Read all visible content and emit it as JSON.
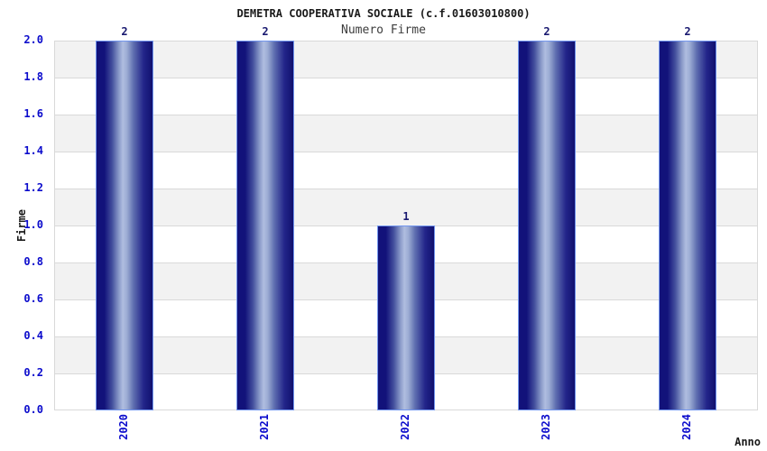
{
  "title": "DEMETRA COOPERATIVA SOCIALE (c.f.01603010800)",
  "subtitle": "Numero Firme",
  "chart_data": {
    "type": "bar",
    "title": "DEMETRA COOPERATIVA SOCIALE (c.f.01603010800)",
    "subtitle": "Numero Firme",
    "categories": [
      "2020",
      "2021",
      "2022",
      "2023",
      "2024"
    ],
    "values": [
      2,
      2,
      1,
      2,
      2
    ],
    "bar_labels": [
      "2",
      "2",
      "1",
      "2",
      "2"
    ],
    "xlabel": "Anno",
    "ylabel": "Firme",
    "ylim": [
      0.0,
      2.0
    ],
    "ytick_step": 0.2,
    "ytick_labels": [
      "0.0",
      "0.2",
      "0.4",
      "0.6",
      "0.8",
      "1.0",
      "1.2",
      "1.4",
      "1.6",
      "1.8",
      "2.0"
    ],
    "grid": "horizontal-bands-alternating",
    "legend": "none"
  },
  "colors": {
    "title_color": "#1a1a1a",
    "subtitle_color": "#3d3d3d",
    "tick_label_blue": "#0b0bcc",
    "value_label_navy": "#191970",
    "axis_title_color": "#1a1a1a",
    "bar_dark": "#12127a",
    "bar_mid": "#5f6fb0",
    "bar_light": "#afbde0",
    "bar_border": "#7296ee",
    "band_gray": "#f2f2f2",
    "band_white": "#ffffff",
    "grid_line": "#d9d9d9",
    "background": "#ffffff"
  }
}
